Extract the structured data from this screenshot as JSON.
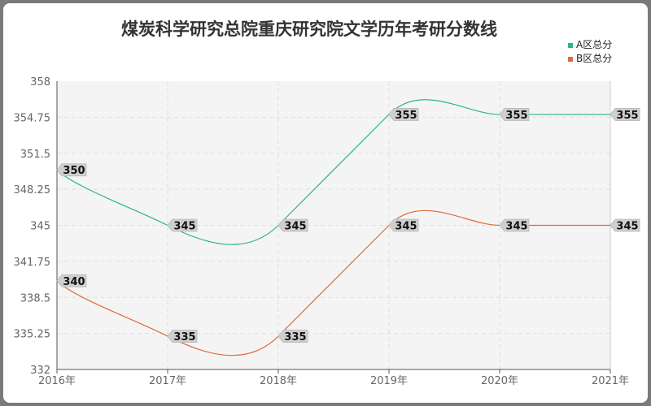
{
  "chart_data": {
    "type": "line",
    "title": "煤炭科学研究总院重庆研究院文学历年考研分数线",
    "categories": [
      "2016年",
      "2017年",
      "2018年",
      "2019年",
      "2020年",
      "2021年"
    ],
    "series": [
      {
        "name": "A区总分",
        "values": [
          350,
          345,
          345,
          355,
          355,
          355
        ],
        "color": "#2bb58a"
      },
      {
        "name": "B区总分",
        "values": [
          340,
          335,
          335,
          345,
          345,
          345
        ],
        "color": "#e06a3b"
      }
    ],
    "ylim": [
      332,
      358
    ],
    "yticks": [
      "358",
      "354.75",
      "351.5",
      "348.25",
      "345",
      "341.75",
      "338.5",
      "335.25",
      "332"
    ],
    "xlabel": "",
    "ylabel": "",
    "grid": true,
    "legend_position": "top-right"
  }
}
